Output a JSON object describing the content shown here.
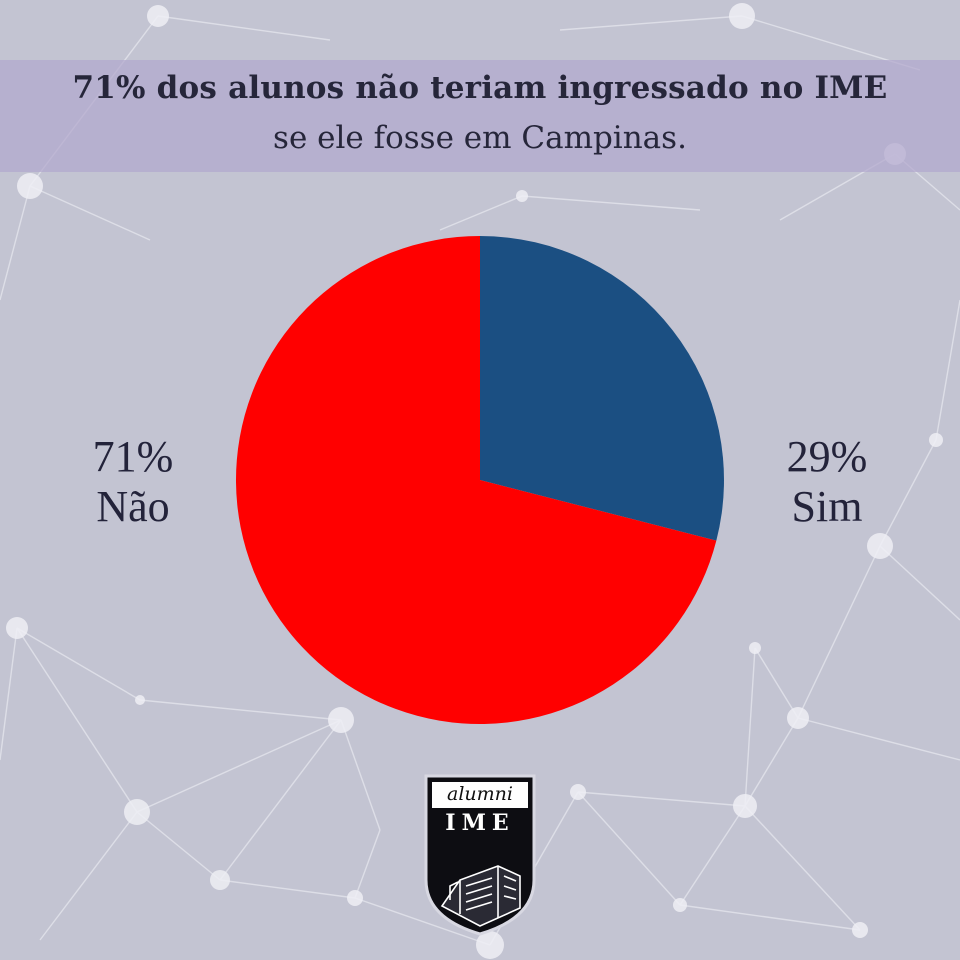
{
  "title": {
    "line1": "71% dos alunos não teriam ingressado no IME",
    "line2": "se ele fosse em Campinas."
  },
  "chart_data": {
    "type": "pie",
    "title": "71% dos alunos não teriam ingressado no IME se ele fosse em Campinas.",
    "slices": [
      {
        "label": "Sim",
        "value": 29,
        "percent_label": "29%",
        "color": "#1b4f82"
      },
      {
        "label": "Não",
        "value": 71,
        "percent_label": "71%",
        "color": "#ff0000"
      }
    ]
  },
  "logo": {
    "line1": "alumni",
    "line2": "IME"
  },
  "colors": {
    "background": "#c3c4d2",
    "banner": "#b2a8cd",
    "text": "#26263a"
  }
}
